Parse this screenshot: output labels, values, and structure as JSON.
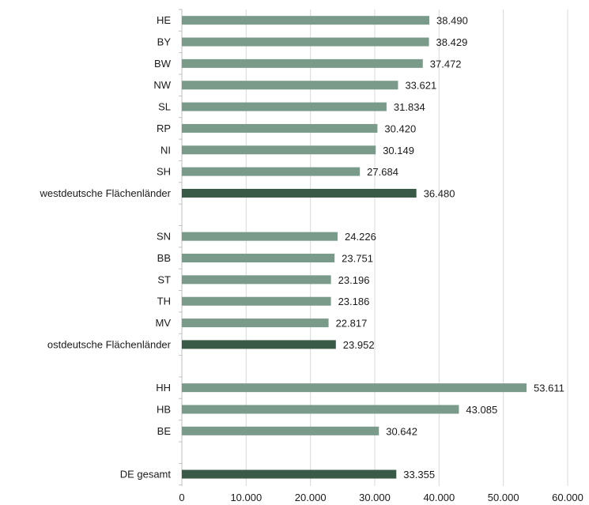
{
  "chart_data": {
    "type": "bar",
    "orientation": "horizontal",
    "colors": {
      "bar": "#7a9a8a",
      "total_bar": "#3a5a48",
      "grid": "#d9d9d9",
      "axis": "#bfbfbf"
    },
    "xlim": [
      0,
      60000
    ],
    "x_ticks": [
      {
        "value": 0,
        "label": "0"
      },
      {
        "value": 10000,
        "label": "10.000"
      },
      {
        "value": 20000,
        "label": "20.000"
      },
      {
        "value": 30000,
        "label": "30.000"
      },
      {
        "value": 40000,
        "label": "40.000"
      },
      {
        "value": 50000,
        "label": "50.000"
      },
      {
        "value": 60000,
        "label": "60.000"
      }
    ],
    "grid": "vertical",
    "legend": "none",
    "bars": [
      {
        "category": "HE",
        "value": 38490,
        "label": "38.490",
        "total": false
      },
      {
        "category": "BY",
        "value": 38429,
        "label": "38.429",
        "total": false
      },
      {
        "category": "BW",
        "value": 37472,
        "label": "37.472",
        "total": false
      },
      {
        "category": "NW",
        "value": 33621,
        "label": "33.621",
        "total": false
      },
      {
        "category": "SL",
        "value": 31834,
        "label": "31.834",
        "total": false
      },
      {
        "category": "RP",
        "value": 30420,
        "label": "30.420",
        "total": false
      },
      {
        "category": "NI",
        "value": 30149,
        "label": "30.149",
        "total": false
      },
      {
        "category": "SH",
        "value": 27684,
        "label": "27.684",
        "total": false
      },
      {
        "category": "westdeutsche Flächenländer",
        "value": 36480,
        "label": "36.480",
        "total": true
      },
      {
        "category": "",
        "value": null,
        "label": "",
        "total": false
      },
      {
        "category": "SN",
        "value": 24226,
        "label": "24.226",
        "total": false
      },
      {
        "category": "BB",
        "value": 23751,
        "label": "23.751",
        "total": false
      },
      {
        "category": "ST",
        "value": 23196,
        "label": "23.196",
        "total": false
      },
      {
        "category": "TH",
        "value": 23186,
        "label": "23.186",
        "total": false
      },
      {
        "category": "MV",
        "value": 22817,
        "label": "22.817",
        "total": false
      },
      {
        "category": "ostdeutsche Flächenländer",
        "value": 23952,
        "label": "23.952",
        "total": true
      },
      {
        "category": "",
        "value": null,
        "label": "",
        "total": false
      },
      {
        "category": "HH",
        "value": 53611,
        "label": "53.611",
        "total": false
      },
      {
        "category": "HB",
        "value": 43085,
        "label": "43.085",
        "total": false
      },
      {
        "category": "BE",
        "value": 30642,
        "label": "30.642",
        "total": false
      },
      {
        "category": "",
        "value": null,
        "label": "",
        "total": false
      },
      {
        "category": "DE gesamt",
        "value": 33355,
        "label": "33.355",
        "total": true
      }
    ]
  }
}
